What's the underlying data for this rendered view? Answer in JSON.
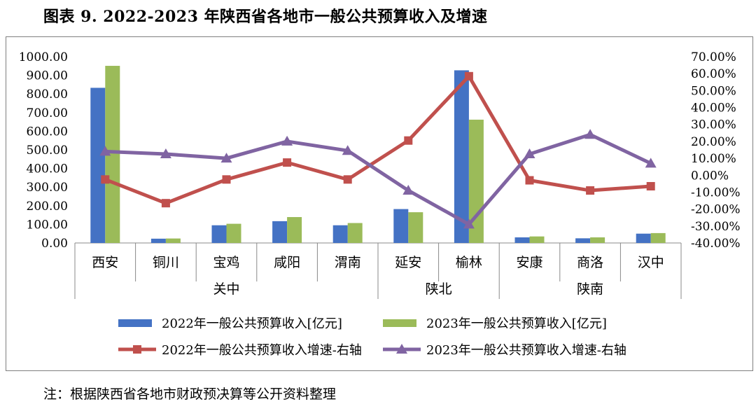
{
  "title": "图表 9. 2022-2023 年陕西省各地市一般公共预算收入及增速",
  "note": "注：根据陕西省各地市财政预决算等公开资料整理",
  "chart_data": {
    "type": "bar",
    "categories": [
      "西安",
      "铜川",
      "宝鸡",
      "咸阳",
      "渭南",
      "延安",
      "榆林",
      "安康",
      "商洛",
      "汉中"
    ],
    "groups": [
      {
        "label": "关中",
        "count": 5
      },
      {
        "label": "陕北",
        "count": 2
      },
      {
        "label": "陕南",
        "count": 3
      }
    ],
    "series": [
      {
        "name": "2022年一般公共预算收入[亿元]",
        "type": "bar",
        "axis": "left",
        "color": "#4472C4",
        "values": [
          833,
          23,
          95,
          117,
          95,
          182,
          927,
          30,
          25,
          50
        ]
      },
      {
        "name": "2023年一般公共预算收入[亿元]",
        "type": "bar",
        "axis": "left",
        "color": "#9BBB59",
        "values": [
          951,
          24,
          103,
          139,
          107,
          165,
          662,
          35,
          30,
          53
        ]
      },
      {
        "name": "2022年一般公共预算收入增速-右轴",
        "type": "line",
        "axis": "right",
        "color": "#C0504D",
        "marker": "square",
        "values": [
          -2.5,
          -16.5,
          -2.5,
          7.5,
          -2.5,
          20.5,
          58.5,
          -3.0,
          -9.0,
          -6.5
        ]
      },
      {
        "name": "2023年一般公共预算收入增速-右轴",
        "type": "line",
        "axis": "right",
        "color": "#8064A2",
        "marker": "triangle",
        "values": [
          14.0,
          12.5,
          10.0,
          20.0,
          14.5,
          -9.0,
          -29.0,
          12.5,
          24.0,
          7.0
        ]
      }
    ],
    "y_left": {
      "min": 0,
      "max": 1000,
      "step": 100,
      "ticks": [
        "0.00",
        "100.00",
        "200.00",
        "300.00",
        "400.00",
        "500.00",
        "600.00",
        "700.00",
        "800.00",
        "900.00",
        "1000.00"
      ]
    },
    "y_right": {
      "min": -40,
      "max": 70,
      "step": 10,
      "ticks": [
        "-40.00%",
        "-30.00%",
        "-20.00%",
        "-10.00%",
        "0.00%",
        "10.00%",
        "20.00%",
        "30.00%",
        "40.00%",
        "50.00%",
        "60.00%",
        "70.00%"
      ]
    },
    "legend_position": "bottom",
    "grid": false
  }
}
